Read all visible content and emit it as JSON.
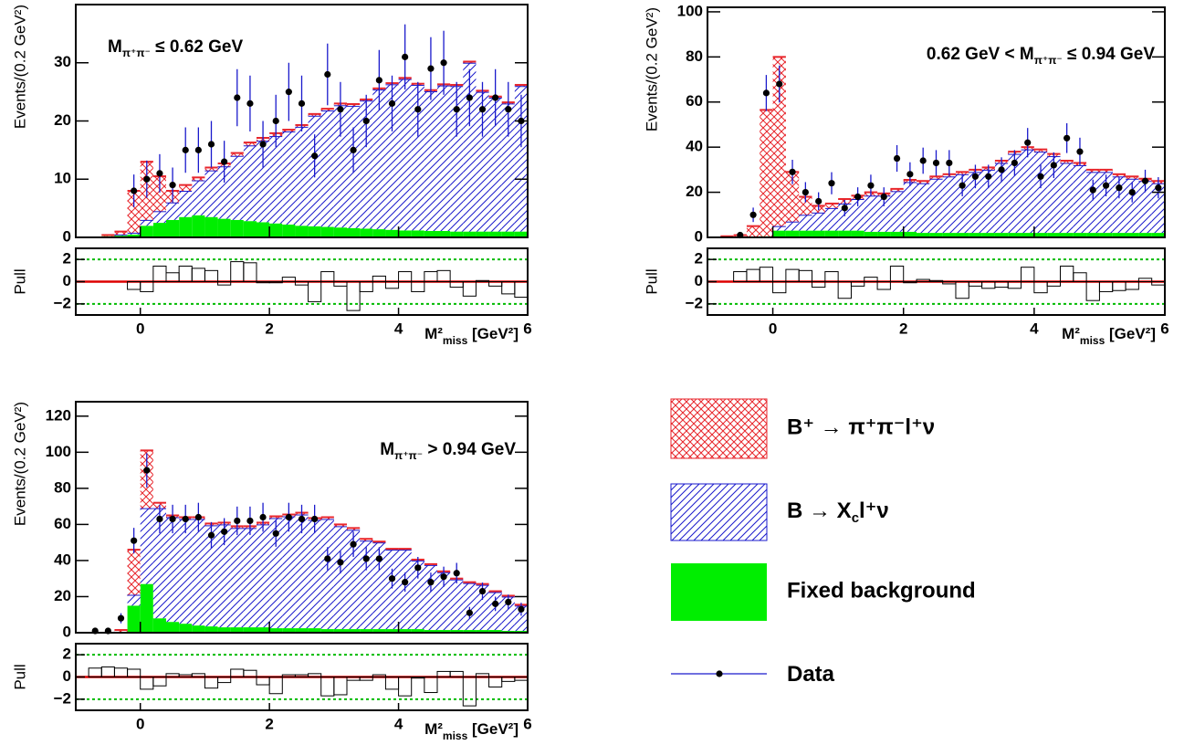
{
  "legend": [
    {
      "name": [
        "B⁺ → π⁺π⁻l⁺ν"
      ]
    },
    {
      "name": [
        "B → X",
        "c",
        "l⁺ν"
      ]
    },
    {
      "name": [
        "Fixed background"
      ]
    },
    {
      "name": [
        "Data"
      ]
    }
  ],
  "chart_data": [
    {
      "type": "histogram",
      "annotation": [
        "M",
        "π⁺π⁻",
        " ≤ 0.62 GeV"
      ],
      "y_label": "Events/(0.2 GeV²)",
      "x_label": [
        "M²",
        "miss",
        " [GeV²]"
      ],
      "pull_label": "Pull",
      "bins": [
        -1,
        -0.8,
        -0.6,
        -0.4,
        -0.2,
        0,
        0.2,
        0.4,
        0.6,
        0.8,
        1,
        1.2,
        1.4,
        1.6,
        1.8,
        2,
        2.2,
        2.4,
        2.6,
        2.8,
        3,
        3.2,
        3.4,
        3.6,
        3.8,
        4,
        4.2,
        4.4,
        4.6,
        4.8,
        5,
        5.2,
        5.4,
        5.6,
        5.8,
        6
      ],
      "xlim": [
        -1,
        6
      ],
      "xticks": [
        0,
        2,
        4,
        6
      ],
      "ylim": [
        0,
        40
      ],
      "yticks": [
        0,
        10,
        20,
        30
      ],
      "series": [
        {
          "color": "#00ee00",
          "fill": "solid",
          "values": [
            0,
            0,
            0.2,
            0.3,
            0.5,
            2,
            2.5,
            3,
            3.5,
            3.8,
            3.5,
            3.2,
            3,
            2.8,
            2.6,
            2.4,
            2.2,
            2,
            1.9,
            1.8,
            1.7,
            1.6,
            1.5,
            1.4,
            1.3,
            1.2,
            1.2,
            1.1,
            1.1,
            1,
            1,
            1,
            1,
            1,
            1
          ]
        },
        {
          "color": "#1a1acc",
          "fill": "hatch",
          "values": [
            0,
            0,
            0,
            0.2,
            0.3,
            1,
            2,
            3,
            4.5,
            6,
            8,
            9,
            11,
            13,
            14,
            15,
            16,
            17,
            19,
            20,
            21,
            21,
            22,
            24,
            25,
            26,
            25,
            24,
            25,
            25,
            29,
            24,
            23,
            22,
            25
          ]
        },
        {
          "color": "#e8262c",
          "fill": "crosshatch",
          "values": [
            0,
            0,
            0.2,
            0.5,
            7.2,
            10,
            6,
            2,
            1,
            0.5,
            0.5,
            0.5,
            0.5,
            0.5,
            0.5,
            0.5,
            0.3,
            0.3,
            0.3,
            0.3,
            0.3,
            0.3,
            0.2,
            0.2,
            0.2,
            0.2,
            0.2,
            0.2,
            0.2,
            0.2,
            0.2,
            0.2,
            0.2,
            0.2,
            0.2
          ]
        }
      ],
      "data": {
        "color": "#1a1acc",
        "values": [
          null,
          null,
          null,
          null,
          8,
          10,
          11,
          9,
          15,
          15,
          16,
          13,
          24,
          23,
          16,
          20,
          25,
          23,
          14,
          28,
          22,
          15,
          20,
          27,
          23,
          31,
          22,
          29,
          30,
          22,
          24,
          22,
          24,
          22,
          20
        ],
        "errors": [
          null,
          null,
          null,
          null,
          2.8,
          3.2,
          3.3,
          3,
          3.9,
          3.9,
          4,
          3.6,
          4.9,
          4.8,
          4,
          4.5,
          5,
          4.8,
          3.7,
          5.3,
          4.7,
          3.9,
          4.5,
          5.2,
          4.8,
          5.6,
          4.7,
          5.4,
          5.5,
          4.7,
          4.9,
          4.7,
          4.9,
          4.7,
          4.5
        ]
      },
      "pull": {
        "ylim": [
          -3,
          3
        ],
        "yticks": [
          {
            "value": -2,
            "label": "−2"
          },
          0,
          2
        ],
        "values": [
          null,
          null,
          null,
          null,
          -0.7,
          -0.9,
          1.4,
          0.8,
          1.4,
          1.2,
          1.0,
          -0.3,
          1.8,
          1.7,
          -0.1,
          -0.1,
          0.4,
          -0.3,
          -1.8,
          0.9,
          -0.4,
          -2.6,
          -0.9,
          0.5,
          -0.6,
          0.9,
          -0.9,
          0.9,
          1.0,
          -0.5,
          -1.3,
          0.1,
          -0.4,
          -1.1,
          -1.4
        ]
      }
    },
    {
      "type": "histogram",
      "annotation": [
        "0.62 GeV < M",
        "π⁺π⁻",
        " ≤ 0.94 GeV"
      ],
      "y_label": "Events/(0.2 GeV²)",
      "x_label": [
        "M²",
        "miss",
        " [GeV²]"
      ],
      "pull_label": "Pull",
      "bins": [
        -1,
        -0.8,
        -0.6,
        -0.4,
        -0.2,
        0,
        0.2,
        0.4,
        0.6,
        0.8,
        1,
        1.2,
        1.4,
        1.6,
        1.8,
        2,
        2.2,
        2.4,
        2.6,
        2.8,
        3,
        3.2,
        3.4,
        3.6,
        3.8,
        4,
        4.2,
        4.4,
        4.6,
        4.8,
        5,
        5.2,
        5.4,
        5.6,
        5.8,
        6
      ],
      "xlim": [
        -1,
        6
      ],
      "xticks": [
        0,
        2,
        4,
        6
      ],
      "ylim": [
        0,
        102
      ],
      "yticks": [
        0,
        20,
        40,
        60,
        80,
        100
      ],
      "series": [
        {
          "color": "#00ee00",
          "fill": "solid",
          "values": [
            0,
            0,
            0,
            0,
            0.5,
            3,
            3,
            3,
            3,
            3,
            3,
            3,
            2.5,
            2.5,
            2.5,
            2.5,
            2,
            2,
            2,
            2,
            2,
            2,
            2,
            2,
            2,
            2,
            2,
            2,
            2,
            2,
            2,
            2,
            2,
            2,
            2
          ]
        },
        {
          "color": "#1a1acc",
          "fill": "hatch",
          "values": [
            0,
            0,
            0,
            0,
            0,
            2,
            4,
            7,
            8,
            10,
            12,
            14,
            16,
            16,
            18,
            22,
            22,
            24,
            25,
            26,
            27,
            28,
            31,
            35,
            37,
            36,
            34,
            31,
            30,
            27,
            27,
            25,
            24,
            23,
            22
          ]
        },
        {
          "color": "#e8262c",
          "fill": "crosshatch",
          "values": [
            0,
            0.5,
            1,
            5,
            56,
            75,
            22,
            8,
            3,
            2,
            2,
            1.5,
            1.5,
            1,
            1,
            1,
            1,
            1,
            1,
            1,
            1,
            1,
            1,
            1,
            1,
            1,
            1,
            1,
            1,
            1,
            1,
            1,
            1,
            1,
            1
          ]
        }
      ],
      "data": {
        "color": "#1a1acc",
        "values": [
          null,
          null,
          1,
          10,
          64,
          68,
          29,
          20,
          16,
          24,
          13,
          18,
          23,
          18,
          35,
          28,
          34,
          33,
          33,
          23,
          27,
          27,
          30,
          33,
          42,
          27,
          32,
          44,
          38,
          21,
          23,
          22,
          20,
          25,
          22
        ],
        "errors": [
          null,
          null,
          1,
          3.2,
          8,
          8.2,
          5.4,
          4.5,
          4,
          4.9,
          3.6,
          4.2,
          4.8,
          4.2,
          5.9,
          5.3,
          5.8,
          5.7,
          5.7,
          4.8,
          5.2,
          5.2,
          5.5,
          5.7,
          6.5,
          5.2,
          5.7,
          6.6,
          6.2,
          4.6,
          4.8,
          4.7,
          4.5,
          5,
          4.7
        ]
      },
      "pull": {
        "ylim": [
          -3,
          3
        ],
        "yticks": [
          {
            "value": -2,
            "label": "−2"
          },
          0,
          2
        ],
        "values": [
          null,
          null,
          0.9,
          1.1,
          1.3,
          -1.0,
          1.1,
          1.0,
          -0.5,
          0.9,
          -1.5,
          -0.4,
          0.4,
          -0.7,
          1.4,
          -0.1,
          0.2,
          0.1,
          -0.2,
          -1.5,
          -0.4,
          -0.6,
          -0.5,
          -0.6,
          1.3,
          -1.0,
          -0.4,
          1.4,
          0.8,
          -1.7,
          -0.9,
          -0.8,
          -0.7,
          0.3,
          -0.3
        ]
      }
    },
    {
      "type": "histogram",
      "annotation": [
        "M",
        "π⁺π⁻",
        " > 0.94 GeV"
      ],
      "y_label": "Events/(0.2 GeV²)",
      "x_label": [
        "M²",
        "miss",
        " [GeV²]"
      ],
      "pull_label": "Pull",
      "bins": [
        -1,
        -0.8,
        -0.6,
        -0.4,
        -0.2,
        0,
        0.2,
        0.4,
        0.6,
        0.8,
        1,
        1.2,
        1.4,
        1.6,
        1.8,
        2,
        2.2,
        2.4,
        2.6,
        2.8,
        3,
        3.2,
        3.4,
        3.6,
        3.8,
        4,
        4.2,
        4.4,
        4.6,
        4.8,
        5,
        5.2,
        5.4,
        5.6,
        5.8,
        6
      ],
      "xlim": [
        -1,
        6
      ],
      "xticks": [
        0,
        2,
        4,
        6
      ],
      "ylim": [
        0,
        128
      ],
      "yticks": [
        0,
        20,
        40,
        60,
        80,
        100,
        120
      ],
      "series": [
        {
          "color": "#00ee00",
          "fill": "solid",
          "values": [
            0,
            0,
            0,
            0,
            15,
            27,
            8,
            6,
            5,
            4,
            3.5,
            3,
            3,
            3,
            3,
            2.5,
            2.5,
            2.5,
            2.5,
            2,
            2,
            2,
            2,
            2,
            2,
            2,
            2,
            1.5,
            1.5,
            1.5,
            1.5,
            1.5,
            1.5,
            1,
            1
          ]
        },
        {
          "color": "#1a1acc",
          "fill": "hatch",
          "values": [
            0,
            0,
            0,
            0.5,
            6,
            42,
            61,
            58,
            58,
            59,
            56,
            57,
            55,
            55,
            57,
            61,
            62,
            63,
            60,
            61,
            57,
            55,
            49,
            48,
            44,
            44,
            38,
            36,
            32,
            28,
            26,
            25,
            21,
            19,
            14
          ]
        },
        {
          "color": "#e8262c",
          "fill": "crosshatch",
          "values": [
            0,
            0,
            0,
            1,
            25,
            32,
            3,
            1,
            1,
            1,
            1,
            1,
            1,
            1,
            1,
            1,
            1,
            1,
            1,
            1,
            1,
            1,
            1,
            0.5,
            0.5,
            0.5,
            0.5,
            0.5,
            0.5,
            0.5,
            0.5,
            0.5,
            0.5,
            0.5,
            0.5
          ]
        }
      ],
      "data": {
        "color": "#1a1acc",
        "values": [
          null,
          1,
          1,
          8,
          51,
          90,
          63,
          63,
          63,
          64,
          54,
          56,
          62,
          62,
          64,
          55,
          64,
          63,
          63,
          41,
          39,
          49,
          41,
          41,
          30,
          28,
          36,
          28,
          31,
          33,
          11,
          23,
          16,
          17,
          13
        ],
        "errors": [
          null,
          1,
          1,
          2.8,
          7.1,
          9.5,
          7.9,
          7.9,
          7.9,
          8,
          7.3,
          7.5,
          7.9,
          7.9,
          8,
          7.4,
          8,
          7.9,
          7.9,
          6.4,
          6.2,
          7,
          6.4,
          6.4,
          5.5,
          5.3,
          6,
          5.3,
          5.6,
          5.7,
          3.3,
          4.8,
          4,
          4.1,
          3.6
        ]
      },
      "pull": {
        "ylim": [
          -3,
          3
        ],
        "yticks": [
          {
            "value": -2,
            "label": "−2"
          },
          0,
          2
        ],
        "values": [
          null,
          0.8,
          0.9,
          0.8,
          0.7,
          -1.1,
          -0.8,
          0.3,
          0.2,
          0.3,
          -1.0,
          -0.5,
          0.7,
          0.6,
          -0.7,
          -1.5,
          0.2,
          0.2,
          0.3,
          -1.7,
          -1.6,
          -0.3,
          -0.3,
          0.2,
          -1.1,
          -1.7,
          -0.1,
          -1.4,
          0.5,
          0.5,
          -2.6,
          0.3,
          -0.9,
          -0.4,
          -0.3
        ]
      }
    }
  ]
}
